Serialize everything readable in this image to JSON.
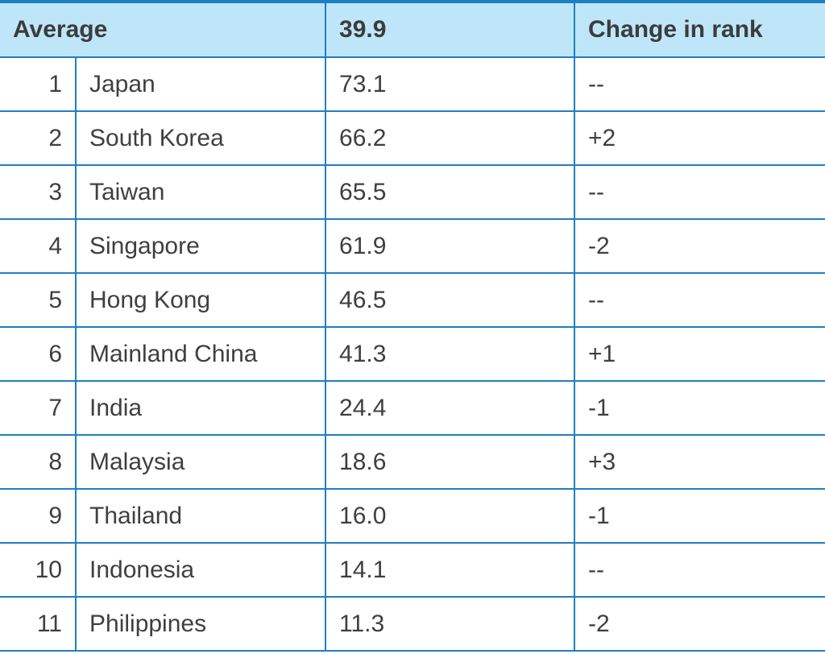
{
  "header": {
    "label": "Average",
    "value": "39.9",
    "change_label": "Change in rank"
  },
  "rows": [
    {
      "rank": "1",
      "country": "Japan",
      "value": "73.1",
      "change": "--"
    },
    {
      "rank": "2",
      "country": "South Korea",
      "value": "66.2",
      "change": "+2"
    },
    {
      "rank": "3",
      "country": "Taiwan",
      "value": "65.5",
      "change": "--"
    },
    {
      "rank": "4",
      "country": "Singapore",
      "value": "61.9",
      "change": "-2"
    },
    {
      "rank": "5",
      "country": "Hong Kong",
      "value": "46.5",
      "change": "--"
    },
    {
      "rank": "6",
      "country": "Mainland China",
      "value": "41.3",
      "change": "+1"
    },
    {
      "rank": "7",
      "country": "India",
      "value": "24.4",
      "change": "-1"
    },
    {
      "rank": "8",
      "country": "Malaysia",
      "value": "18.6",
      "change": "+3"
    },
    {
      "rank": "9",
      "country": "Thailand",
      "value": "16.0",
      "change": "-1"
    },
    {
      "rank": "10",
      "country": "Indonesia",
      "value": "14.1",
      "change": "--"
    },
    {
      "rank": "11",
      "country": "Philippines",
      "value": "11.3",
      "change": "-2"
    }
  ],
  "colors": {
    "accent": "#1e7fc4",
    "header_bg": "#bfe6f8",
    "text": "#3f3f3f"
  }
}
